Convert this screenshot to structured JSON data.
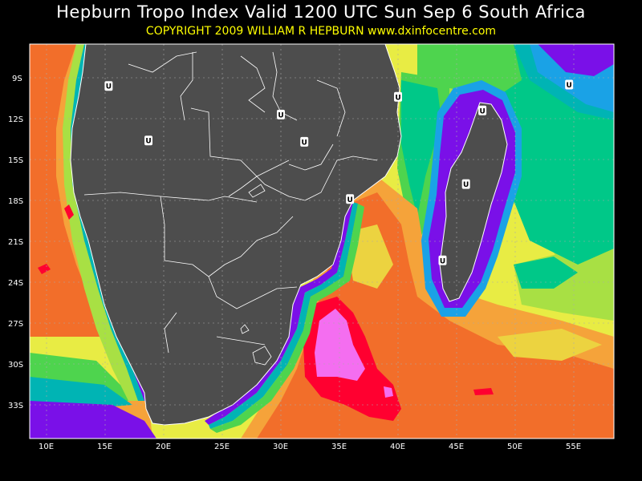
{
  "header": {
    "title": "Hepburn Tropo Index Valid 1200 UTC Sun Sep 6 South Africa",
    "subtitle": "COPYRIGHT 2009   WILLIAM R HEPBURN   www.dxinfocentre.com"
  },
  "colors": {
    "background": "#000000",
    "land": "#4d4d4d",
    "coastline": "#ffffff",
    "grid": "#aaaaaa",
    "scale": [
      "#f46ef0",
      "#ff0030",
      "#f26e2a",
      "#f5a33a",
      "#ecd340",
      "#e8ec44",
      "#a8e044",
      "#4ed44e",
      "#00c888",
      "#00b4b4",
      "#1aa2e6",
      "#7a10e8"
    ]
  },
  "axes": {
    "latitude_labels": [
      "9S",
      "12S",
      "15S",
      "18S",
      "21S",
      "24S",
      "27S",
      "30S",
      "33S"
    ],
    "longitude_labels": [
      "10E",
      "15E",
      "20E",
      "25E",
      "30E",
      "35E",
      "40E",
      "45E",
      "50E",
      "55E"
    ],
    "lat_range": [
      "7S",
      "37S"
    ],
    "lon_range": [
      "8E",
      "58E"
    ]
  },
  "markers": {
    "label": "U",
    "points": [
      {
        "lat": -9.6,
        "lon": 15.3
      },
      {
        "lat": -10.4,
        "lon": 40.0
      },
      {
        "lat": -9.5,
        "lon": 54.6
      },
      {
        "lat": -11.7,
        "lon": 30.0
      },
      {
        "lat": -11.4,
        "lon": 47.2
      },
      {
        "lat": -13.6,
        "lon": 18.7
      },
      {
        "lat": -13.7,
        "lon": 32.0
      },
      {
        "lat": -16.8,
        "lon": 45.8
      },
      {
        "lat": -17.9,
        "lon": 35.9
      },
      {
        "lat": -22.4,
        "lon": 43.8
      }
    ]
  }
}
